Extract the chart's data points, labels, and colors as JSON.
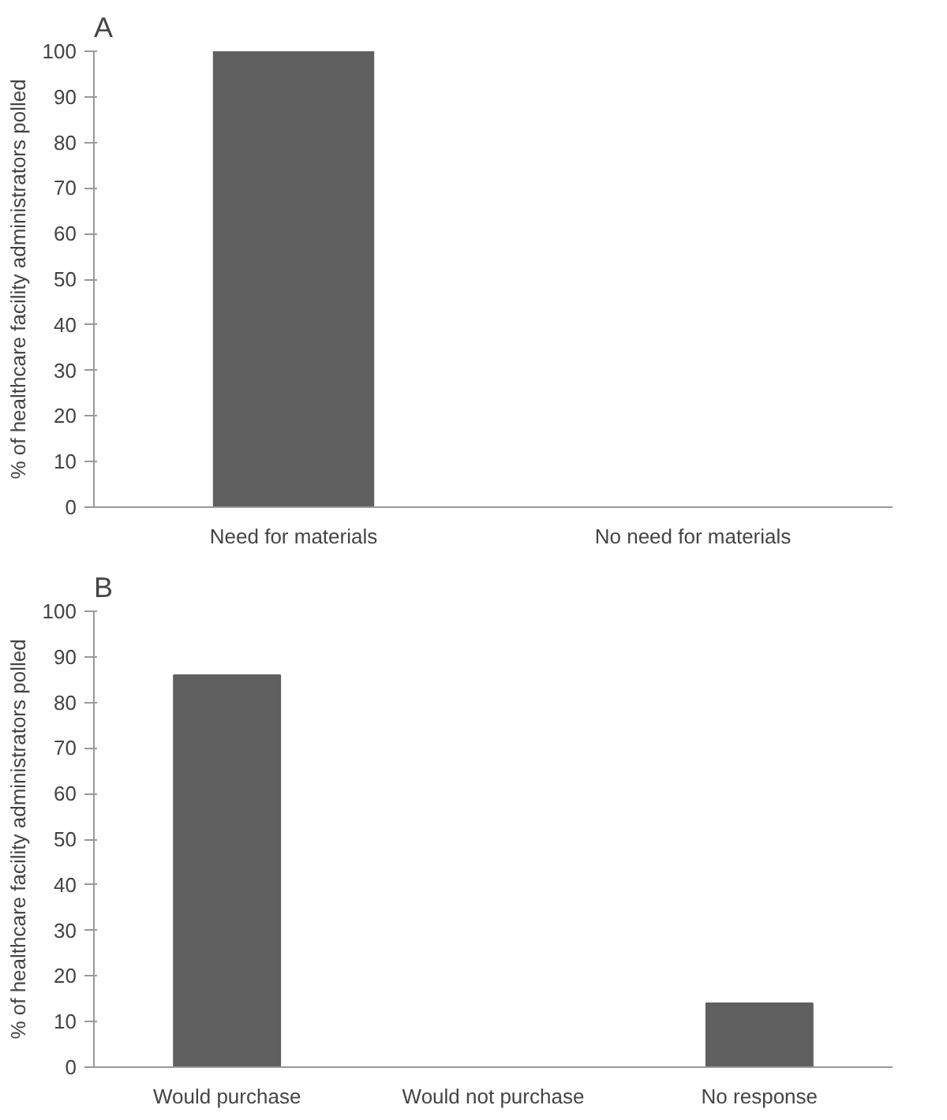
{
  "chart_data": [
    {
      "type": "bar",
      "title": "A",
      "ylabel": "% of healthcare facility administrators polled",
      "categories": [
        "Need for materials",
        "No need for materials"
      ],
      "values": [
        100,
        0
      ],
      "color": "#606060",
      "ylim": [
        0,
        100
      ],
      "yticks": [
        0,
        10,
        20,
        30,
        40,
        50,
        60,
        70,
        80,
        90,
        100
      ],
      "grid": false
    },
    {
      "type": "bar",
      "title": "B",
      "ylabel": "% of healthcare facility administrators polled",
      "categories": [
        "Would purchase",
        "Would not purchase",
        "No response"
      ],
      "values": [
        86,
        0,
        14
      ],
      "color": "#606060",
      "ylim": [
        0,
        100
      ],
      "yticks": [
        0,
        10,
        20,
        30,
        40,
        50,
        60,
        70,
        80,
        90,
        100
      ],
      "grid": false
    }
  ]
}
